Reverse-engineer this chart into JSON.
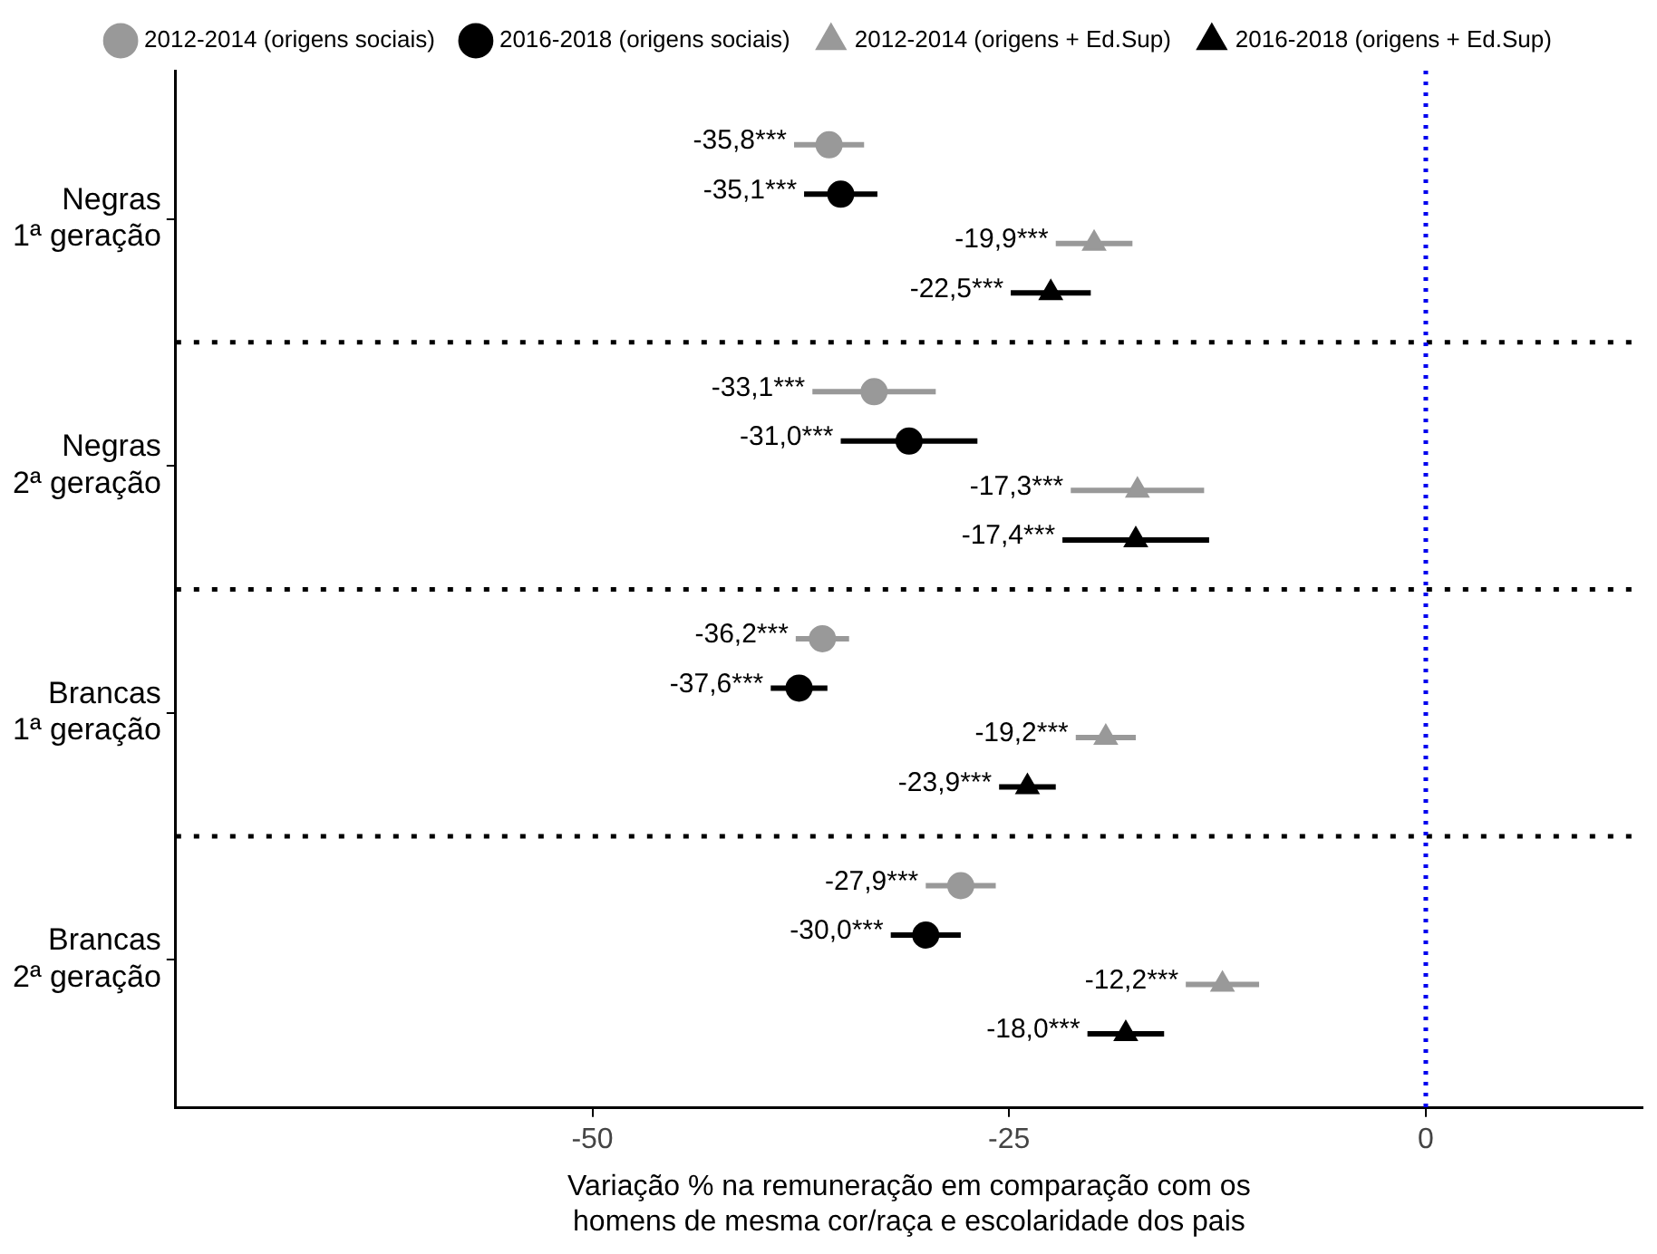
{
  "chart_data": {
    "type": "scatter",
    "orientation": "horizontal",
    "xlabel": "Variação % na remuneração em comparação com os homens de mesma cor/raça e escolaridade dos pais",
    "categories": [
      "Negras 1ª geração",
      "Negras 2ª geração",
      "Brancas 1ª geração",
      "Brancas 2ª geração"
    ],
    "xlim": [
      -75,
      13
    ],
    "xticks": [
      -50,
      -25,
      0
    ],
    "legend": "top",
    "grid": false,
    "ref_lines": [
      {
        "axis": "x",
        "value": 0,
        "color": "#0000ee",
        "line_style": "dotted"
      }
    ],
    "series": [
      {
        "name": "2012-2014 (origens sociais)",
        "color": "#999999",
        "marker": "circle",
        "values": [
          -35.8,
          -33.1,
          -36.2,
          -27.9
        ],
        "errors": [
          2.1,
          3.7,
          1.6,
          2.1
        ],
        "value_labels": [
          "-35,8***",
          "-33,1***",
          "-36,2***",
          "-27,9***"
        ]
      },
      {
        "name": "2016-2018 (origens sociais)",
        "color": "#000000",
        "marker": "circle",
        "values": [
          -35.1,
          -31.0,
          -37.6,
          -30.0
        ],
        "errors": [
          2.2,
          4.1,
          1.7,
          2.1
        ],
        "value_labels": [
          "-35,1***",
          "-31,0***",
          "-37,6***",
          "-30,0***"
        ]
      },
      {
        "name": "2012-2014 (origens + Ed.Sup)",
        "color": "#999999",
        "marker": "triangle",
        "values": [
          -19.9,
          -17.3,
          -19.2,
          -12.2
        ],
        "errors": [
          2.3,
          4.0,
          1.8,
          2.2
        ],
        "value_labels": [
          "-19,9***",
          "-17,3***",
          "-19,2***",
          "-12,2***"
        ]
      },
      {
        "name": "2016-2018 (origens + Ed.Sup)",
        "color": "#000000",
        "marker": "triangle",
        "values": [
          -22.5,
          -17.4,
          -23.9,
          -18.0
        ],
        "errors": [
          2.4,
          4.4,
          1.7,
          2.3
        ],
        "value_labels": [
          "-22,5***",
          "-17,4***",
          "-23,9***",
          "-18,0***"
        ]
      }
    ]
  }
}
